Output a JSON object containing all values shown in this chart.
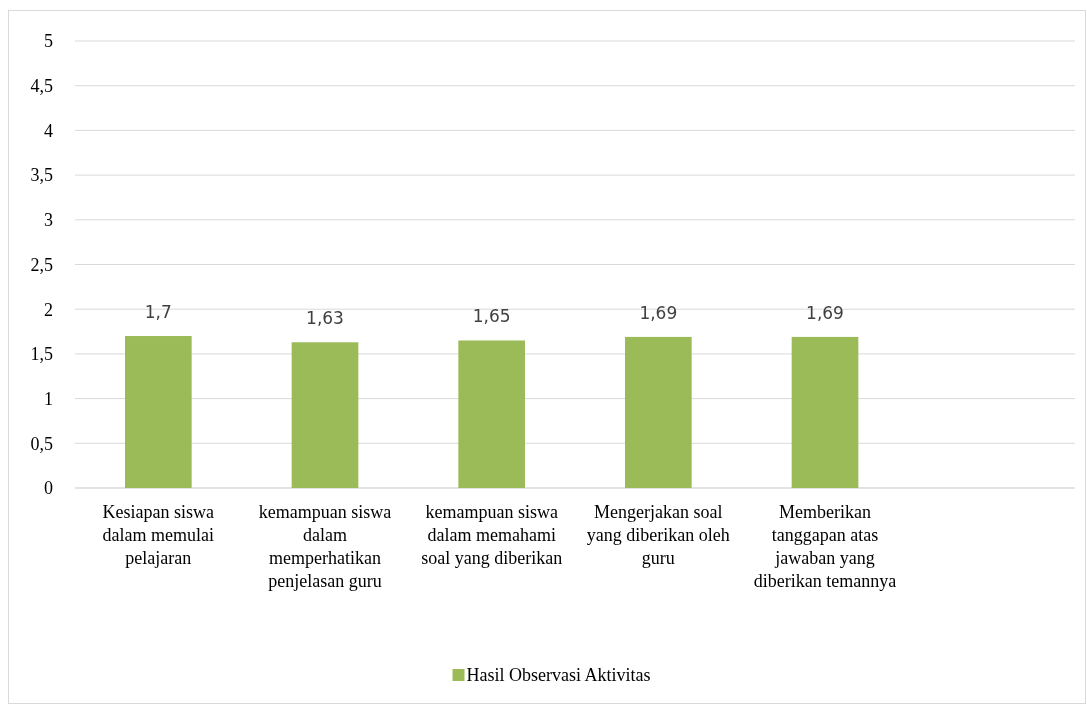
{
  "chart_data": {
    "type": "bar",
    "categories": [
      "Kesiapan siswa dalam memulai pelajaran",
      "kemampuan siswa dalam memperhatikan penjelasan guru",
      "kemampuan siswa dalam memahami soal yang diberikan",
      "Mengerjakan soal yang diberikan oleh guru",
      "Memberikan tanggapan atas jawaban yang diberikan temannya",
      null
    ],
    "series": [
      {
        "name": "Hasil Observasi Aktivitas",
        "color": "#9bbb59",
        "values": [
          1.7,
          1.63,
          1.65,
          1.69,
          1.69,
          null
        ],
        "value_labels": [
          "1,7",
          "1,63",
          "1,65",
          "1,69",
          "1,69",
          null
        ]
      }
    ],
    "ylim": [
      0,
      5
    ],
    "yticks": [
      0,
      {
        "value": 0.5,
        "label": "0,5"
      },
      1,
      {
        "value": 1.5,
        "label": "1,5"
      },
      2,
      {
        "value": 2.5,
        "label": "2,5"
      },
      3,
      {
        "value": 3.5,
        "label": "3,5"
      },
      4,
      {
        "value": 4.5,
        "label": "4,5"
      },
      5
    ],
    "grid": "y",
    "legend": "bottom"
  }
}
